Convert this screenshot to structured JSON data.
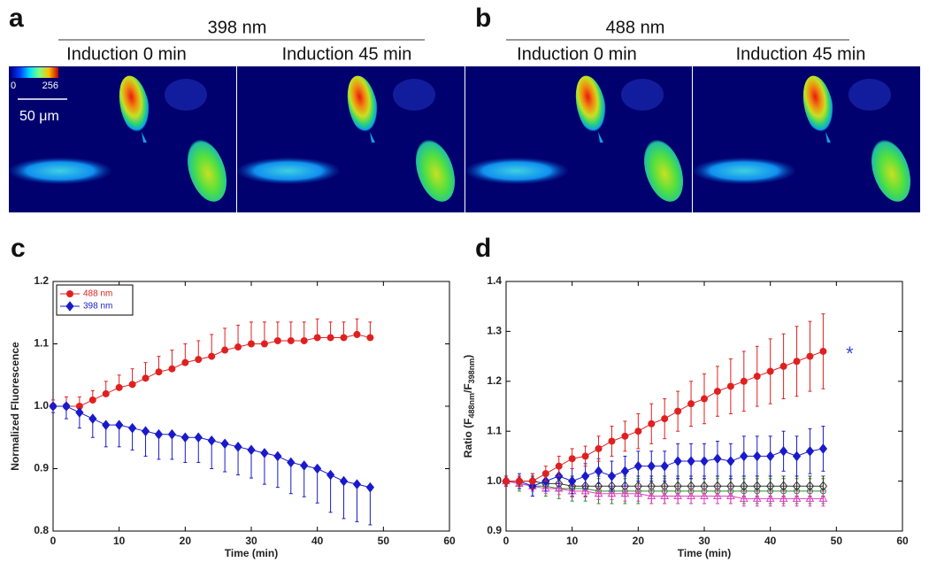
{
  "panels": [
    {
      "letter": "a",
      "wavelength": "398 nm",
      "left": "Induction 0 min",
      "right": "Induction 45 min",
      "colorbar_min": 0,
      "colorbar_max": 256,
      "scale_bar": "50 μm"
    },
    {
      "letter": "b",
      "wavelength": "488 nm",
      "left": "Induction 0 min",
      "right": "Induction 45 min"
    }
  ],
  "chart_data": [
    {
      "type": "line",
      "letter": "c",
      "xlabel": "Time (min)",
      "ylabel": [
        "Normalized Fluorescence"
      ],
      "xlim": [
        0,
        60
      ],
      "xticks": [
        0,
        10,
        20,
        30,
        40,
        50,
        60
      ],
      "ylim": [
        0.8,
        1.2
      ],
      "yticks": [
        0.8,
        0.9,
        {
          "value": 1,
          "label": "1.0"
        },
        1.1,
        1.2
      ],
      "legend": "upper left",
      "x": [
        0,
        2,
        4,
        6,
        8,
        10,
        12,
        14,
        16,
        18,
        20,
        22,
        24,
        26,
        28,
        30,
        32,
        34,
        36,
        38,
        40,
        42,
        44,
        46,
        48
      ],
      "series": [
        {
          "name": "488 nm",
          "color": "#e02020",
          "marker": "circle",
          "error_side": "up",
          "values": [
            1.0,
            1.0,
            1.0,
            1.01,
            1.02,
            1.03,
            1.035,
            1.045,
            1.055,
            1.06,
            1.07,
            1.075,
            1.08,
            1.09,
            1.095,
            1.1,
            1.1,
            1.105,
            1.105,
            1.105,
            1.11,
            1.11,
            1.11,
            1.115,
            1.11
          ],
          "errors": [
            0.01,
            0.015,
            0.015,
            0.015,
            0.02,
            0.02,
            0.025,
            0.025,
            0.025,
            0.03,
            0.03,
            0.03,
            0.035,
            0.035,
            0.035,
            0.035,
            0.035,
            0.03,
            0.03,
            0.03,
            0.03,
            0.025,
            0.025,
            0.025,
            0.025
          ]
        },
        {
          "name": "398 nm",
          "color": "#1a1acc",
          "marker": "diamond",
          "error_side": "down",
          "values": [
            1.0,
            1.0,
            0.99,
            0.98,
            0.97,
            0.97,
            0.965,
            0.96,
            0.955,
            0.955,
            0.95,
            0.95,
            0.945,
            0.94,
            0.935,
            0.93,
            0.925,
            0.92,
            0.91,
            0.905,
            0.9,
            0.89,
            0.88,
            0.875,
            0.87
          ],
          "errors": [
            0.01,
            0.02,
            0.025,
            0.03,
            0.035,
            0.035,
            0.035,
            0.04,
            0.04,
            0.04,
            0.04,
            0.04,
            0.045,
            0.045,
            0.045,
            0.045,
            0.05,
            0.05,
            0.05,
            0.05,
            0.055,
            0.06,
            0.06,
            0.06,
            0.06
          ]
        }
      ]
    },
    {
      "type": "line",
      "letter": "d",
      "xlabel": "Time (min)",
      "ylabel": [
        "Ratio (F",
        "488nm",
        "/F",
        "398nm",
        ")"
      ],
      "xlim": [
        0,
        60
      ],
      "xticks": [
        0,
        10,
        20,
        30,
        40,
        50,
        60
      ],
      "ylim": [
        0.9,
        1.4
      ],
      "yticks": [
        0.9,
        {
          "value": 1,
          "label": "1.0"
        },
        1.1,
        1.2,
        1.3,
        1.4
      ],
      "annotation": "*",
      "annotation_color": "#3a4ad0",
      "x": [
        0,
        2,
        4,
        6,
        8,
        10,
        12,
        14,
        16,
        18,
        20,
        22,
        24,
        26,
        28,
        30,
        32,
        34,
        36,
        38,
        40,
        42,
        44,
        46,
        48
      ],
      "series": [
        {
          "color": "#2e8b2e",
          "marker": "open-circle",
          "error_side": "both",
          "values": [
            1.0,
            0.995,
            0.99,
            0.99,
            0.985,
            0.985,
            0.985,
            0.98,
            0.98,
            0.98,
            0.98,
            0.98,
            0.98,
            0.98,
            0.98,
            0.98,
            0.98,
            0.98,
            0.98,
            0.98,
            0.98,
            0.98,
            0.98,
            0.98,
            0.98
          ],
          "errors": [
            0.01,
            0.015,
            0.02,
            0.02,
            0.02,
            0.025,
            0.025,
            0.025,
            0.025,
            0.025,
            0.025,
            0.025,
            0.025,
            0.025,
            0.025,
            0.025,
            0.025,
            0.025,
            0.025,
            0.025,
            0.025,
            0.025,
            0.025,
            0.025,
            0.025
          ]
        },
        {
          "color": "#333333",
          "marker": "open-diamond",
          "error_side": "both",
          "values": [
            1.0,
            1.0,
            1.0,
            0.995,
            0.995,
            0.99,
            0.99,
            0.99,
            0.99,
            0.99,
            0.99,
            0.99,
            0.99,
            0.99,
            0.99,
            0.99,
            0.99,
            0.99,
            0.99,
            0.99,
            0.99,
            0.99,
            0.99,
            0.99,
            0.99
          ],
          "errors": [
            0.01,
            0.01,
            0.015,
            0.015,
            0.015,
            0.02,
            0.02,
            0.02,
            0.02,
            0.02,
            0.02,
            0.02,
            0.02,
            0.02,
            0.02,
            0.02,
            0.02,
            0.02,
            0.02,
            0.02,
            0.02,
            0.02,
            0.02,
            0.02,
            0.02
          ]
        },
        {
          "color": "#e040c0",
          "marker": "open-triangle",
          "error_side": "both",
          "values": [
            1.0,
            0.995,
            0.99,
            0.985,
            0.985,
            0.98,
            0.98,
            0.975,
            0.975,
            0.975,
            0.975,
            0.97,
            0.97,
            0.97,
            0.97,
            0.97,
            0.97,
            0.97,
            0.965,
            0.965,
            0.965,
            0.965,
            0.965,
            0.965,
            0.965
          ],
          "errors": [
            0.01,
            0.01,
            0.01,
            0.01,
            0.012,
            0.012,
            0.012,
            0.012,
            0.012,
            0.015,
            0.015,
            0.015,
            0.015,
            0.015,
            0.015,
            0.015,
            0.015,
            0.015,
            0.015,
            0.015,
            0.015,
            0.015,
            0.015,
            0.015,
            0.015
          ]
        },
        {
          "color": "#1a1acc",
          "marker": "diamond",
          "error_side": "both",
          "values": [
            1.0,
            1.0,
            0.99,
            1.0,
            1.01,
            1.0,
            1.01,
            1.02,
            1.01,
            1.02,
            1.03,
            1.03,
            1.03,
            1.04,
            1.04,
            1.04,
            1.045,
            1.04,
            1.05,
            1.05,
            1.05,
            1.06,
            1.05,
            1.06,
            1.065
          ],
          "errors": [
            0.01,
            0.015,
            0.02,
            0.02,
            0.02,
            0.025,
            0.025,
            0.025,
            0.03,
            0.03,
            0.03,
            0.03,
            0.03,
            0.035,
            0.035,
            0.035,
            0.035,
            0.035,
            0.04,
            0.04,
            0.04,
            0.04,
            0.04,
            0.045,
            0.045
          ]
        },
        {
          "color": "#e02020",
          "marker": "circle",
          "error_side": "both",
          "values": [
            1.0,
            1.0,
            1.0,
            1.015,
            1.03,
            1.045,
            1.05,
            1.065,
            1.08,
            1.09,
            1.1,
            1.115,
            1.125,
            1.14,
            1.155,
            1.165,
            1.18,
            1.19,
            1.2,
            1.21,
            1.22,
            1.23,
            1.24,
            1.25,
            1.26
          ],
          "errors": [
            0.01,
            0.01,
            0.015,
            0.015,
            0.02,
            0.02,
            0.02,
            0.025,
            0.03,
            0.03,
            0.035,
            0.04,
            0.04,
            0.04,
            0.045,
            0.05,
            0.05,
            0.055,
            0.06,
            0.06,
            0.065,
            0.065,
            0.07,
            0.07,
            0.075
          ]
        }
      ]
    }
  ]
}
